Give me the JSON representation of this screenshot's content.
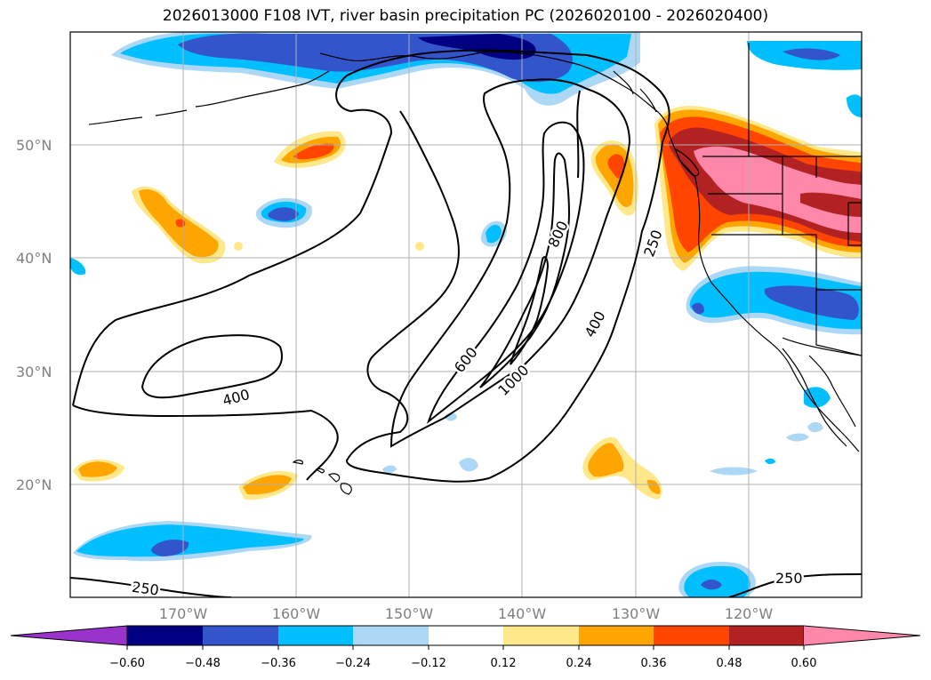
{
  "title": "2026013000 F108 IVT, river basin precipitation PC (2026020100 - 2026020400)",
  "lat_labels": [
    "50°N",
    "40°N",
    "30°N",
    "20°N"
  ],
  "lon_labels": [
    "170°W",
    "160°W",
    "150°W",
    "140°W",
    "130°W",
    "120°W"
  ],
  "contour_labels": [
    "400",
    "600",
    "800",
    "1000",
    "400",
    "250",
    "250",
    "250"
  ],
  "colorbar": {
    "ticks": [
      "−0.60",
      "−0.48",
      "−0.36",
      "−0.24",
      "−0.12",
      "0.12",
      "0.24",
      "0.36",
      "0.48",
      "0.60"
    ],
    "colors": [
      "#9933cc",
      "#000080",
      "#3355cc",
      "#00bfff",
      "#add8f5",
      "#ffffff",
      "#ffe88a",
      "#ffa500",
      "#ff4500",
      "#b22222",
      "#ff88aa"
    ]
  },
  "chart_data": {
    "type": "contour-map",
    "title": "2026013000 F108 IVT, river basin precipitation PC (2026020100 - 2026020400)",
    "ivt_contour_levels": [
      250,
      400,
      600,
      800,
      1000
    ],
    "pc_colorbar_levels": [
      -0.6,
      -0.48,
      -0.36,
      -0.24,
      -0.12,
      0.12,
      0.24,
      0.36,
      0.48,
      0.6
    ],
    "lat_range": [
      10,
      60
    ],
    "lon_range": [
      -180,
      -110
    ],
    "grid": true
  }
}
